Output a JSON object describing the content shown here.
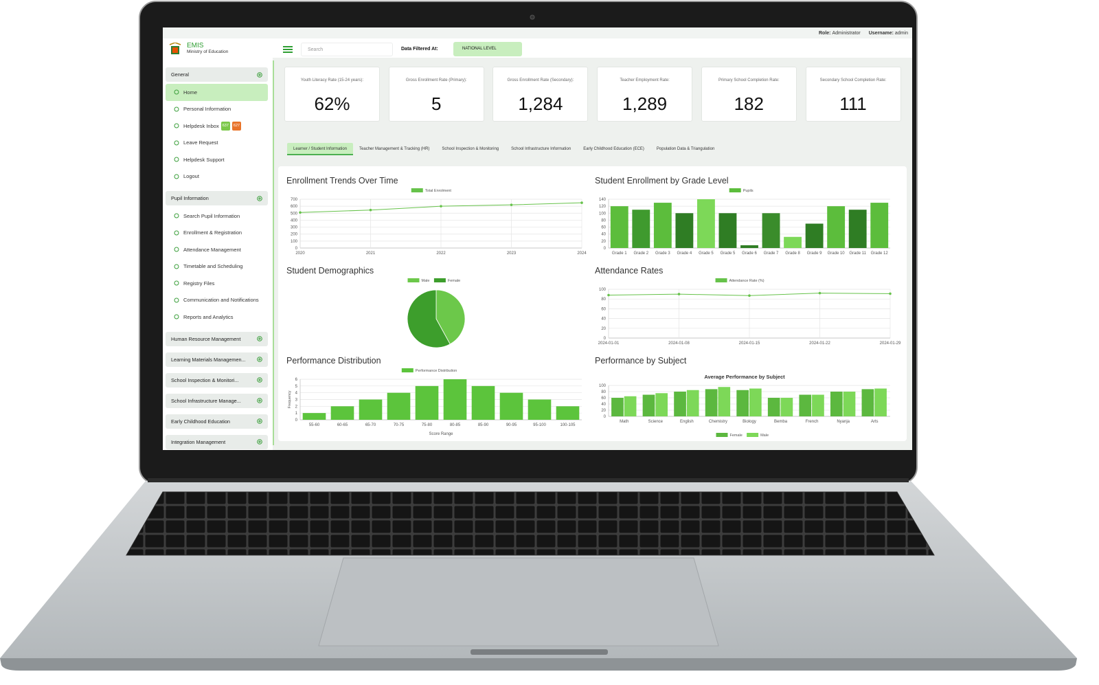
{
  "header": {
    "app_name": "EMIS",
    "subtitle": "Ministry of Education",
    "search_placeholder": "Search",
    "filter_label": "Data Filtered At:",
    "filter_value": "NATIONAL LEVEL",
    "role_label": "Role:",
    "role": "Administrator",
    "username_label": "Username:",
    "username": "admin"
  },
  "sidebar": {
    "sections": [
      {
        "title": "General",
        "items": [
          {
            "label": "Home"
          },
          {
            "label": "Personal Information"
          },
          {
            "label": "Helpdesk Inbox",
            "badges": [
              "637",
              "627"
            ]
          },
          {
            "label": "Leave Request"
          },
          {
            "label": "Helpdesk Support"
          },
          {
            "label": "Logout"
          }
        ]
      },
      {
        "title": "Pupil Information",
        "items": [
          {
            "label": "Search Pupil Information"
          },
          {
            "label": "Enrollment & Registration"
          },
          {
            "label": "Attendance Management"
          },
          {
            "label": "Timetable and Scheduling"
          },
          {
            "label": "Registry Files"
          },
          {
            "label": "Communication and Notifications"
          },
          {
            "label": "Reports and Analytics"
          }
        ]
      },
      {
        "title": "Human Resource Management"
      },
      {
        "title": "Learning Materials Managemen..."
      },
      {
        "title": "School Inspection & Monitori..."
      },
      {
        "title": "School Infrastructure Manage..."
      },
      {
        "title": "Early Childhood Education"
      },
      {
        "title": "Integration Management"
      }
    ]
  },
  "kpis": [
    {
      "label": "Youth Literacy Rate (15-24 years):",
      "value": "62%"
    },
    {
      "label": "Gross Enrollment Rate (Primary):",
      "value": "5"
    },
    {
      "label": "Gross Enrollment Rate (Secondary):",
      "value": "1,284"
    },
    {
      "label": "Teacher Employment Rate:",
      "value": "1,289"
    },
    {
      "label": "Primary School Completion Rate:",
      "value": "182"
    },
    {
      "label": "Secondary School Completion Rate:",
      "value": "111"
    }
  ],
  "tabs": [
    "Learner / Student Information",
    "Teacher Management & Tracking (HR)",
    "School Inspection & Monitoring",
    "School Infrastructure Information",
    "Early Childhood Education (ECE)",
    "Population Data & Triangulation"
  ],
  "chart_data": [
    {
      "type": "line",
      "title": "Enrollment Trends Over Time",
      "categories": [
        "2020",
        "2021",
        "2022",
        "2023",
        "2024"
      ],
      "series": [
        {
          "name": "Total Enrolment",
          "color": "#66c24a",
          "values": [
            510,
            545,
            600,
            620,
            650
          ]
        }
      ],
      "ylim": [
        0,
        700
      ],
      "yticks": [
        0,
        100,
        200,
        300,
        400,
        500,
        600,
        700
      ],
      "grid": true,
      "legend": "top"
    },
    {
      "type": "bar",
      "title": "Student Enrollment by Grade Level",
      "categories": [
        "Grade 1",
        "Grade 2",
        "Grade 3",
        "Grade 4",
        "Grade 5",
        "Grade 5",
        "Grade 6",
        "Grade 7",
        "Grade 8",
        "Grade 9",
        "Grade 10",
        "Grade 11",
        "Grade 12"
      ],
      "series": [
        {
          "name": "Pupils",
          "color": "#5cbd3c",
          "values": [
            120,
            110,
            130,
            100,
            140,
            100,
            8,
            100,
            32,
            70,
            120,
            110,
            130
          ]
        }
      ],
      "bar_colors": [
        "#5cbd3c",
        "#3f9a2e",
        "#5cbd3c",
        "#2f7d24",
        "#7dd858",
        "#2f7d24",
        "#2f7d24",
        "#3a8c2b",
        "#7dd858",
        "#2f7d24",
        "#5cbd3c",
        "#2f7d24",
        "#5cbd3c"
      ],
      "ylim": [
        0,
        140
      ],
      "yticks": [
        0,
        20,
        40,
        60,
        80,
        100,
        120,
        140
      ],
      "grid": true,
      "legend": "top"
    },
    {
      "type": "pie",
      "title": "Student Demographics",
      "categories": [
        "Male",
        "Female"
      ],
      "values": [
        42,
        58
      ],
      "colors": [
        "#6cc84a",
        "#3d9e2c"
      ],
      "legend": "top"
    },
    {
      "type": "line",
      "title": "Attendance Rates",
      "categories": [
        "2024-01-01",
        "2024-01-08",
        "2024-01-15",
        "2024-01-22",
        "2024-01-29"
      ],
      "series": [
        {
          "name": "Attendance Rate (%)",
          "color": "#66c24a",
          "values": [
            88,
            90,
            87,
            92,
            91
          ]
        }
      ],
      "ylim": [
        0,
        100
      ],
      "yticks": [
        0,
        20,
        40,
        60,
        80,
        100
      ],
      "grid": true,
      "legend": "top"
    },
    {
      "type": "bar",
      "title": "Performance Distribution",
      "xlabel": "Score Range",
      "ylabel": "Frequency",
      "categories": [
        "55-60",
        "60-65",
        "65-70",
        "70-75",
        "75-80",
        "80-85",
        "85-90",
        "90-95",
        "95-100",
        "100-105"
      ],
      "series": [
        {
          "name": "Performance Distribution",
          "color": "#5cc43c",
          "values": [
            1,
            2,
            3,
            4,
            5,
            6,
            5,
            4,
            3,
            2
          ]
        }
      ],
      "ylim": [
        0,
        6
      ],
      "yticks": [
        0,
        1,
        2,
        3,
        4,
        5,
        6
      ],
      "grid": true,
      "legend": "top"
    },
    {
      "type": "bar",
      "title": "Performance by Subject",
      "subtitle": "Average Performance by Subject",
      "categories": [
        "Math",
        "Science",
        "English",
        "Chemistry",
        "Biology",
        "Bemba",
        "French",
        "Nyanja",
        "Arts"
      ],
      "series": [
        {
          "name": "Female",
          "color": "#5cb83f",
          "values": [
            60,
            70,
            80,
            88,
            85,
            60,
            70,
            80,
            88
          ]
        },
        {
          "name": "Male",
          "color": "#7dd858",
          "values": [
            65,
            75,
            85,
            95,
            90,
            60,
            70,
            80,
            90
          ]
        }
      ],
      "ylim": [
        0,
        100
      ],
      "yticks": [
        0,
        20,
        40,
        60,
        80,
        100
      ],
      "grid": true,
      "legend": "bottom"
    }
  ]
}
